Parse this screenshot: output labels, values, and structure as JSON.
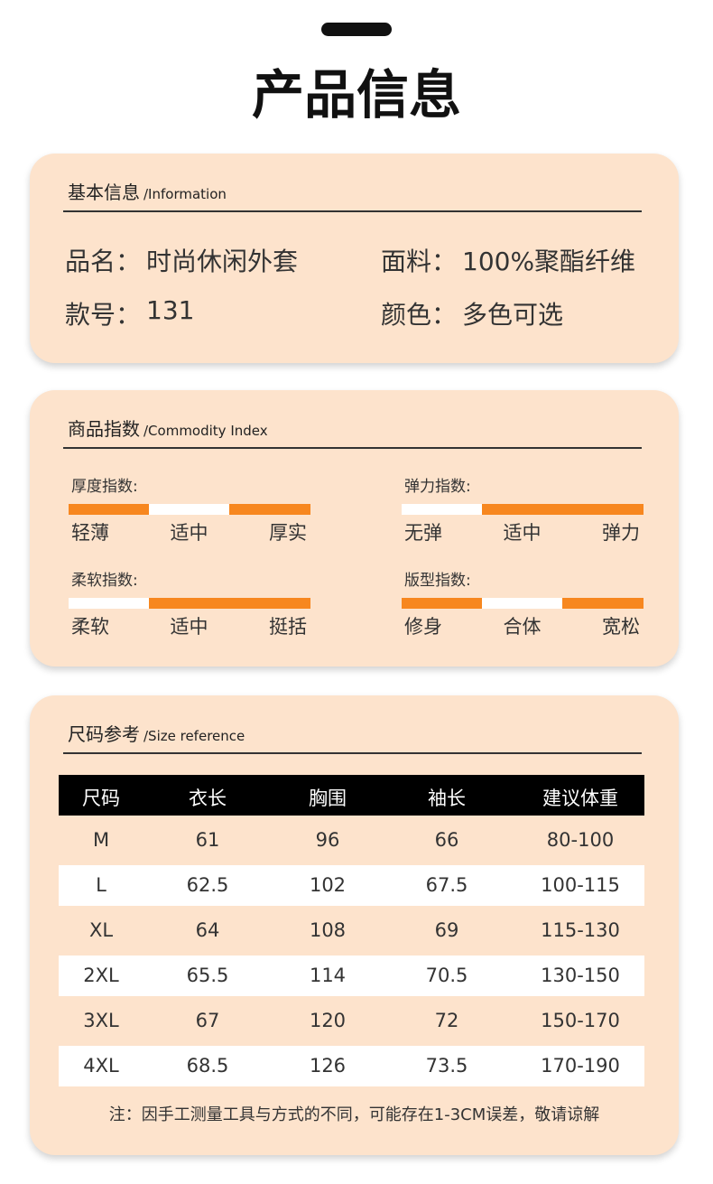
{
  "title": "产品信息",
  "basic": {
    "heading": "基本信息",
    "subheading": "/Information",
    "fields": [
      {
        "label": "品名：",
        "value": "时尚休闲外套"
      },
      {
        "label": "面料：",
        "value": "100%聚酯纤维"
      },
      {
        "label": "款号：",
        "value": "131"
      },
      {
        "label": "颜色：",
        "value": "多色可选"
      }
    ]
  },
  "index": {
    "heading": "商品指数",
    "subheading": "/Commodity Index",
    "items": [
      {
        "label": "厚度指数:",
        "options": [
          "轻薄",
          "适中",
          "厚实"
        ],
        "selected": 1
      },
      {
        "label": "弹力指数:",
        "options": [
          "无弹",
          "适中",
          "弹力"
        ],
        "selected": 0
      },
      {
        "label": "柔软指数:",
        "options": [
          "柔软",
          "适中",
          "挺括"
        ],
        "selected": 0
      },
      {
        "label": "版型指数:",
        "options": [
          "修身",
          "合体",
          "宽松"
        ],
        "selected": 1
      }
    ]
  },
  "size": {
    "heading": "尺码参考",
    "subheading": "/Size reference",
    "table": {
      "header": [
        "尺码",
        "衣长",
        "胸围",
        "袖长",
        "建议体重"
      ],
      "rows": [
        [
          "M",
          "61",
          "96",
          "66",
          "80-100"
        ],
        [
          "L",
          "62.5",
          "102",
          "67.5",
          "100-115"
        ],
        [
          "XL",
          "64",
          "108",
          "69",
          "115-130"
        ],
        [
          "2XL",
          "65.5",
          "114",
          "70.5",
          "130-150"
        ],
        [
          "3XL",
          "67",
          "120",
          "72",
          "150-170"
        ],
        [
          "4XL",
          "68.5",
          "126",
          "73.5",
          "170-190"
        ]
      ]
    },
    "note": "注：因手工测量工具与方式的不同，可能存在1-3CM误差，敬请谅解"
  }
}
